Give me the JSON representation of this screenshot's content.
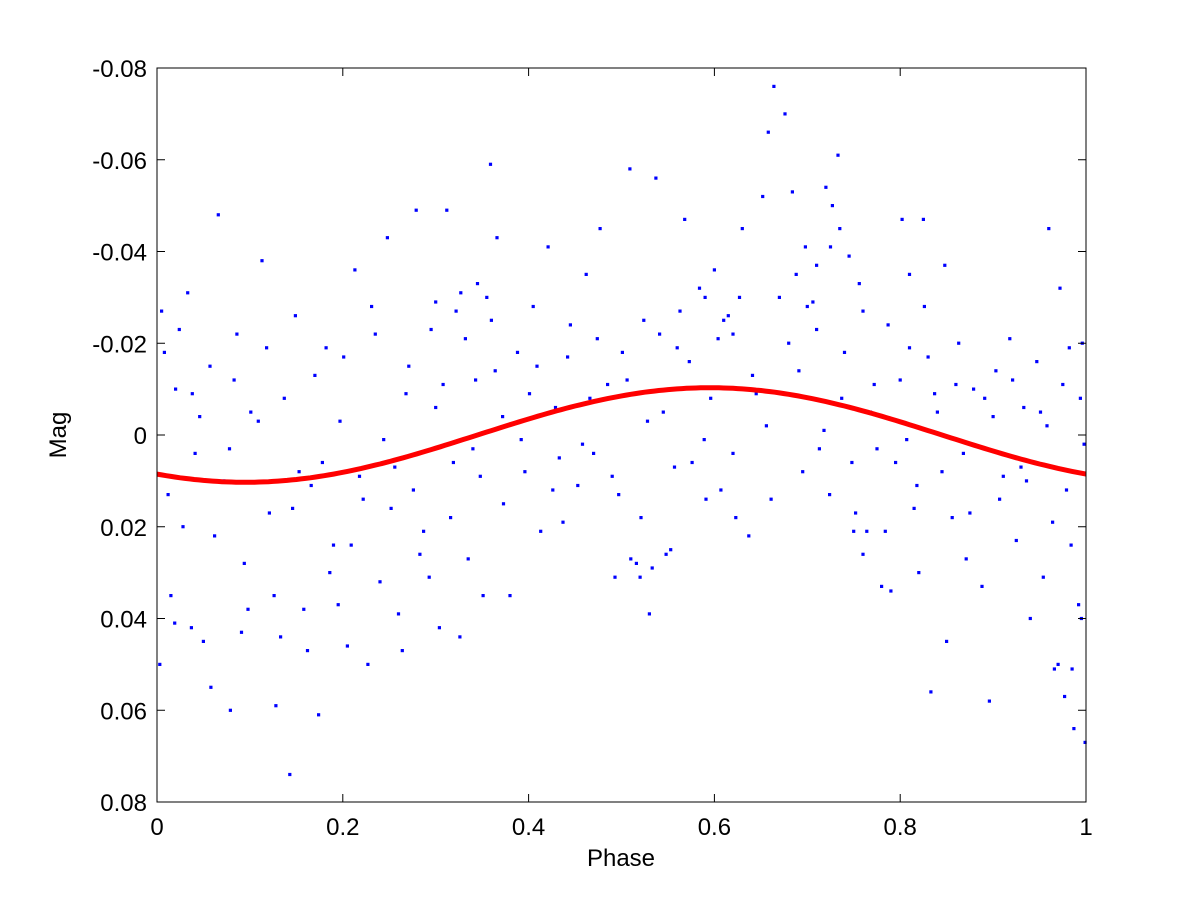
{
  "chart_data": {
    "type": "scatter",
    "title": "",
    "xlabel": "Phase",
    "ylabel": "Mag",
    "xlim": [
      0,
      1
    ],
    "ylim": [
      0.08,
      -0.08
    ],
    "y_inverted": true,
    "grid": false,
    "x_ticks": [
      0,
      0.2,
      0.4,
      0.6,
      0.8,
      1
    ],
    "x_tick_labels": [
      "0",
      "0.2",
      "0.4",
      "0.6",
      "0.8",
      "1"
    ],
    "y_ticks": [
      -0.08,
      -0.06,
      -0.04,
      -0.02,
      0,
      0.02,
      0.04,
      0.06,
      0.08
    ],
    "y_tick_labels": [
      "-0.08",
      "-0.06",
      "-0.04",
      "-0.02",
      "0",
      "0.02",
      "0.04",
      "0.06",
      "0.08"
    ],
    "series": [
      {
        "kind": "scatter",
        "color": "#0000ff",
        "marker": "point",
        "points": [
          [
            0.005,
            -0.027
          ],
          [
            0.012,
            0.013
          ],
          [
            0.02,
            -0.01
          ],
          [
            0.028,
            0.02
          ],
          [
            0.033,
            -0.031
          ],
          [
            0.041,
            0.004
          ],
          [
            0.05,
            0.045
          ],
          [
            0.057,
            -0.015
          ],
          [
            0.066,
            -0.048
          ],
          [
            0.072,
            0.01
          ],
          [
            0.079,
            0.06
          ],
          [
            0.086,
            -0.022
          ],
          [
            0.094,
            0.028
          ],
          [
            0.101,
            -0.005
          ],
          [
            0.113,
            -0.038
          ],
          [
            0.121,
            0.017
          ],
          [
            0.128,
            0.059
          ],
          [
            0.137,
            -0.008
          ],
          [
            0.143,
            0.074
          ],
          [
            0.149,
            -0.026
          ],
          [
            0.158,
            0.038
          ],
          [
            0.166,
            0.011
          ],
          [
            0.174,
            0.061
          ],
          [
            0.182,
            -0.019
          ],
          [
            0.19,
            0.024
          ],
          [
            0.197,
            -0.003
          ],
          [
            0.205,
            0.046
          ],
          [
            0.213,
            -0.036
          ],
          [
            0.222,
            0.014
          ],
          [
            0.231,
            -0.028
          ],
          [
            0.24,
            0.032
          ],
          [
            0.248,
            -0.043
          ],
          [
            0.256,
            0.007
          ],
          [
            0.264,
            0.047
          ],
          [
            0.271,
            -0.015
          ],
          [
            0.279,
            -0.049
          ],
          [
            0.287,
            0.021
          ],
          [
            0.295,
            -0.023
          ],
          [
            0.304,
            0.042
          ],
          [
            0.312,
            -0.049
          ],
          [
            0.319,
            0.006
          ],
          [
            0.327,
            -0.031
          ],
          [
            0.335,
            0.027
          ],
          [
            0.343,
            -0.012
          ],
          [
            0.351,
            0.035
          ],
          [
            0.359,
            -0.059
          ],
          [
            0.366,
            -0.043
          ],
          [
            0.373,
            0.015
          ],
          [
            0.38,
            0.035
          ],
          [
            0.388,
            -0.018
          ],
          [
            0.396,
            0.008
          ],
          [
            0.405,
            -0.028
          ],
          [
            0.413,
            0.021
          ],
          [
            0.421,
            -0.041
          ],
          [
            0.429,
            -0.006
          ],
          [
            0.437,
            0.019
          ],
          [
            0.445,
            -0.024
          ],
          [
            0.453,
            0.011
          ],
          [
            0.462,
            -0.035
          ],
          [
            0.47,
            0.004
          ],
          [
            0.477,
            -0.045
          ],
          [
            0.485,
            -0.011
          ],
          [
            0.493,
            0.031
          ],
          [
            0.501,
            -0.018
          ],
          [
            0.509,
            -0.058
          ],
          [
            0.516,
            0.028
          ],
          [
            0.524,
            -0.025
          ],
          [
            0.53,
            0.039
          ],
          [
            0.537,
            -0.056
          ],
          [
            0.545,
            -0.005
          ],
          [
            0.553,
            0.025
          ],
          [
            0.56,
            -0.019
          ],
          [
            0.568,
            -0.047
          ],
          [
            0.576,
            0.006
          ],
          [
            0.584,
            -0.032
          ],
          [
            0.591,
            0.014
          ],
          [
            0.6,
            -0.036
          ],
          [
            0.607,
            0.012
          ],
          [
            0.615,
            -0.026
          ],
          [
            0.623,
            0.018
          ],
          [
            0.63,
            -0.045
          ],
          [
            0.637,
            0.022
          ],
          [
            0.645,
            -0.009
          ],
          [
            0.652,
            -0.052
          ],
          [
            0.658,
            -0.066
          ],
          [
            0.664,
            -0.076
          ],
          [
            0.67,
            -0.03
          ],
          [
            0.676,
            -0.07
          ],
          [
            0.684,
            -0.053
          ],
          [
            0.691,
            -0.014
          ],
          [
            0.698,
            -0.041
          ],
          [
            0.706,
            -0.029
          ],
          [
            0.713,
            0.003
          ],
          [
            0.72,
            -0.054
          ],
          [
            0.727,
            -0.05
          ],
          [
            0.733,
            -0.061
          ],
          [
            0.74,
            -0.018
          ],
          [
            0.748,
            0.006
          ],
          [
            0.756,
            -0.033
          ],
          [
            0.764,
            0.021
          ],
          [
            0.772,
            -0.011
          ],
          [
            0.78,
            0.033
          ],
          [
            0.787,
            -0.024
          ],
          [
            0.795,
            0.006
          ],
          [
            0.802,
            -0.047
          ],
          [
            0.81,
            -0.019
          ],
          [
            0.818,
            0.011
          ],
          [
            0.826,
            -0.028
          ],
          [
            0.833,
            0.056
          ],
          [
            0.84,
            -0.005
          ],
          [
            0.848,
            -0.037
          ],
          [
            0.856,
            0.018
          ],
          [
            0.863,
            -0.02
          ],
          [
            0.871,
            0.027
          ],
          [
            0.879,
            -0.01
          ],
          [
            0.888,
            0.033
          ],
          [
            0.896,
            0.058
          ],
          [
            0.903,
            -0.014
          ],
          [
            0.911,
            0.009
          ],
          [
            0.918,
            -0.021
          ],
          [
            0.925,
            0.023
          ],
          [
            0.933,
            -0.006
          ],
          [
            0.94,
            0.04
          ],
          [
            0.947,
            -0.016
          ],
          [
            0.954,
            0.031
          ],
          [
            0.96,
            -0.045
          ],
          [
            0.966,
            0.051
          ],
          [
            0.972,
            -0.032
          ],
          [
            0.977,
            0.057
          ],
          [
            0.982,
            -0.019
          ],
          [
            0.987,
            0.064
          ],
          [
            0.992,
            0.037
          ],
          [
            0.996,
            -0.02
          ],
          [
            0.999,
            0.067
          ],
          [
            0.008,
            -0.018
          ],
          [
            0.015,
            0.035
          ],
          [
            0.024,
            -0.023
          ],
          [
            0.037,
            0.042
          ],
          [
            0.046,
            -0.004
          ],
          [
            0.062,
            0.022
          ],
          [
            0.083,
            -0.012
          ],
          [
            0.098,
            0.038
          ],
          [
            0.118,
            -0.019
          ],
          [
            0.133,
            0.044
          ],
          [
            0.153,
            0.008
          ],
          [
            0.17,
            -0.013
          ],
          [
            0.186,
            0.03
          ],
          [
            0.201,
            -0.017
          ],
          [
            0.218,
            0.009
          ],
          [
            0.235,
            -0.022
          ],
          [
            0.252,
            0.016
          ],
          [
            0.268,
            -0.009
          ],
          [
            0.283,
            0.026
          ],
          [
            0.3,
            -0.006
          ],
          [
            0.316,
            0.018
          ],
          [
            0.332,
            -0.021
          ],
          [
            0.348,
            0.009
          ],
          [
            0.364,
            -0.014
          ],
          [
            0.392,
            0.001
          ],
          [
            0.409,
            -0.015
          ],
          [
            0.426,
            0.012
          ],
          [
            0.442,
            -0.017
          ],
          [
            0.458,
            0.002
          ],
          [
            0.474,
            -0.021
          ],
          [
            0.49,
            0.009
          ],
          [
            0.506,
            -0.012
          ],
          [
            0.521,
            0.018
          ],
          [
            0.541,
            -0.022
          ],
          [
            0.557,
            0.007
          ],
          [
            0.573,
            -0.016
          ],
          [
            0.589,
            0.001
          ],
          [
            0.604,
            -0.021
          ],
          [
            0.62,
            0.004
          ],
          [
            0.641,
            -0.013
          ],
          [
            0.661,
            0.014
          ],
          [
            0.68,
            -0.02
          ],
          [
            0.695,
            0.008
          ],
          [
            0.71,
            -0.023
          ],
          [
            0.724,
            0.013
          ],
          [
            0.737,
            -0.008
          ],
          [
            0.752,
            0.017
          ],
          [
            0.768,
            -0.005
          ],
          [
            0.784,
            0.021
          ],
          [
            0.8,
            -0.012
          ],
          [
            0.815,
            0.016
          ],
          [
            0.83,
            -0.017
          ],
          [
            0.845,
            0.008
          ],
          [
            0.86,
            -0.011
          ],
          [
            0.875,
            0.017
          ],
          [
            0.891,
            -0.008
          ],
          [
            0.907,
            0.014
          ],
          [
            0.921,
            -0.012
          ],
          [
            0.936,
            0.01
          ],
          [
            0.951,
            -0.005
          ],
          [
            0.964,
            0.019
          ],
          [
            0.975,
            -0.011
          ],
          [
            0.984,
            0.024
          ],
          [
            0.994,
            -0.008
          ],
          [
            0.003,
            0.05
          ],
          [
            0.019,
            0.041
          ],
          [
            0.058,
            0.055
          ],
          [
            0.091,
            0.043
          ],
          [
            0.126,
            0.035
          ],
          [
            0.162,
            0.047
          ],
          [
            0.195,
            0.037
          ],
          [
            0.227,
            0.05
          ],
          [
            0.26,
            0.039
          ],
          [
            0.293,
            0.031
          ],
          [
            0.326,
            0.044
          ],
          [
            0.51,
            0.027
          ],
          [
            0.52,
            0.031
          ],
          [
            0.533,
            0.029
          ],
          [
            0.548,
            0.026
          ],
          [
            0.75,
            0.021
          ],
          [
            0.76,
            0.026
          ],
          [
            0.79,
            0.034
          ],
          [
            0.82,
            0.03
          ],
          [
            0.85,
            0.045
          ],
          [
            0.97,
            0.05
          ],
          [
            0.985,
            0.051
          ],
          [
            0.995,
            0.04
          ],
          [
            0.038,
            -0.009
          ],
          [
            0.078,
            0.003
          ],
          [
            0.109,
            -0.003
          ],
          [
            0.146,
            0.016
          ],
          [
            0.178,
            0.006
          ],
          [
            0.209,
            0.024
          ],
          [
            0.244,
            0.001
          ],
          [
            0.276,
            0.012
          ],
          [
            0.308,
            -0.011
          ],
          [
            0.34,
            0.003
          ],
          [
            0.372,
            -0.004
          ],
          [
            0.401,
            -0.009
          ],
          [
            0.433,
            0.005
          ],
          [
            0.466,
            -0.008
          ],
          [
            0.497,
            0.013
          ],
          [
            0.528,
            -0.003
          ],
          [
            0.563,
            -0.027
          ],
          [
            0.596,
            -0.008
          ],
          [
            0.627,
            -0.03
          ],
          [
            0.656,
            -0.002
          ],
          [
            0.688,
            -0.035
          ],
          [
            0.718,
            -0.001
          ],
          [
            0.745,
            -0.039
          ],
          [
            0.775,
            0.003
          ],
          [
            0.807,
            0.001
          ],
          [
            0.837,
            -0.009
          ],
          [
            0.868,
            0.004
          ],
          [
            0.9,
            -0.004
          ],
          [
            0.93,
            0.007
          ],
          [
            0.958,
            -0.002
          ],
          [
            0.979,
            0.012
          ],
          [
            0.998,
            0.002
          ],
          [
            0.355,
            -0.03
          ],
          [
            0.36,
            -0.025
          ],
          [
            0.345,
            -0.033
          ],
          [
            0.322,
            -0.027
          ],
          [
            0.3,
            -0.029
          ],
          [
            0.62,
            -0.022
          ],
          [
            0.61,
            -0.025
          ],
          [
            0.59,
            -0.03
          ],
          [
            0.7,
            -0.028
          ],
          [
            0.71,
            -0.037
          ],
          [
            0.725,
            -0.041
          ],
          [
            0.735,
            -0.045
          ],
          [
            0.76,
            -0.027
          ],
          [
            0.81,
            -0.035
          ],
          [
            0.825,
            -0.047
          ]
        ]
      },
      {
        "kind": "line",
        "color": "#ff0000",
        "model": "sinusoid",
        "amplitude": 0.0103,
        "phase_of_peak": 0.595,
        "offset": 0
      }
    ]
  }
}
